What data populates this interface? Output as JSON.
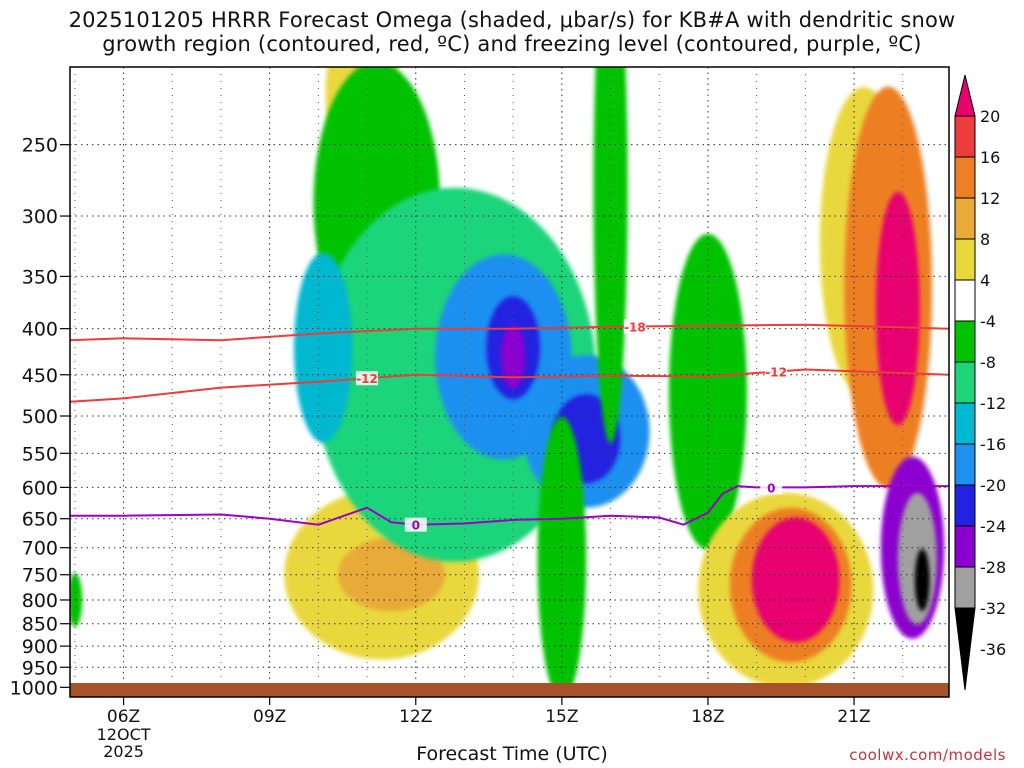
{
  "title": {
    "line1": "2025101205 HRRR Forecast Omega (shaded, μbar/s) for KB#A with dendritic snow",
    "line2": "growth region (contoured, red, ºC) and freezing level (contoured, purple, ºC)"
  },
  "credit": "coolwx.com/models",
  "chart_data": {
    "type": "heatmap",
    "xlabel": "Forecast Time (UTC)",
    "ylabel": "",
    "x_ticks": [
      "06Z",
      "09Z",
      "12Z",
      "15Z",
      "18Z",
      "21Z"
    ],
    "x_tick_hours": [
      6,
      9,
      12,
      15,
      18,
      21
    ],
    "x_sublabel": [
      "12OCT",
      "2025"
    ],
    "xlim_hours": [
      4.9,
      22.95
    ],
    "y_ticks": [
      250,
      300,
      350,
      400,
      450,
      500,
      550,
      600,
      650,
      700,
      750,
      800,
      850,
      900,
      950,
      1000
    ],
    "ylim_hpa": [
      1025,
      205
    ],
    "y_scale": "log",
    "grid": true,
    "colorbar": {
      "labels": [
        "20",
        "16",
        "12",
        "8",
        "4",
        "-4",
        "-8",
        "-12",
        "-16",
        "-20",
        "-24",
        "-28",
        "-32",
        "-36"
      ],
      "colors": [
        "#e8006f",
        "#ee3b3b",
        "#ed7f24",
        "#e8aa38",
        "#e9d83c",
        "#ffffff",
        "#00c200",
        "#1ed47a",
        "#00b8d0",
        "#1e90f0",
        "#2222e0",
        "#8b00d0",
        "#a0a0a0",
        "#000000"
      ]
    },
    "omega_regions": [
      {
        "t": 5.0,
        "p": 800,
        "dt": 0.15,
        "dp": 55,
        "v": -6
      },
      {
        "t": 11.3,
        "p": 750,
        "dt": 2.0,
        "dp": 160,
        "v": 5
      },
      {
        "t": 11.5,
        "p": 750,
        "dt": 1.1,
        "dp": 70,
        "v": 9
      },
      {
        "t": 10.9,
        "p": 220,
        "dt": 0.75,
        "dp": 50,
        "v": 5
      },
      {
        "t": 10.9,
        "p": 225,
        "dt": 0.3,
        "dp": 22,
        "v": 11
      },
      {
        "t": 11.2,
        "p": 290,
        "dt": 1.3,
        "dp": 100,
        "v": -6
      },
      {
        "t": 12.8,
        "p": 450,
        "dt": 2.9,
        "dp": 200,
        "v": -8
      },
      {
        "t": 13.8,
        "p": 430,
        "dt": 1.4,
        "dp": 110,
        "v": -18
      },
      {
        "t": 14.0,
        "p": 420,
        "dt": 0.55,
        "dp": 55,
        "v": -22
      },
      {
        "t": 14.0,
        "p": 430,
        "dt": 0.25,
        "dp": 35,
        "v": -26
      },
      {
        "t": 15.5,
        "p": 520,
        "dt": 1.3,
        "dp": 100,
        "v": -18
      },
      {
        "t": 15.5,
        "p": 530,
        "dt": 0.7,
        "dp": 60,
        "v": -22
      },
      {
        "t": 10.1,
        "p": 420,
        "dt": 0.6,
        "dp": 100,
        "v": -14
      },
      {
        "t": 15.0,
        "p": 720,
        "dt": 0.5,
        "dp": 250,
        "v": -7
      },
      {
        "t": 16.0,
        "p": 280,
        "dt": 0.35,
        "dp": 160,
        "v": -6
      },
      {
        "t": 18.0,
        "p": 470,
        "dt": 0.8,
        "dp": 180,
        "v": -7
      },
      {
        "t": 19.6,
        "p": 780,
        "dt": 1.8,
        "dp": 190,
        "v": 6
      },
      {
        "t": 19.7,
        "p": 770,
        "dt": 1.25,
        "dp": 150,
        "v": 14
      },
      {
        "t": 19.8,
        "p": 760,
        "dt": 0.9,
        "dp": 120,
        "v": 22
      },
      {
        "t": 21.2,
        "p": 320,
        "dt": 0.9,
        "dp": 120,
        "v": 5
      },
      {
        "t": 21.7,
        "p": 360,
        "dt": 0.9,
        "dp": 170,
        "v": 12
      },
      {
        "t": 21.9,
        "p": 380,
        "dt": 0.45,
        "dp": 110,
        "v": 22
      },
      {
        "t": 22.2,
        "p": 700,
        "dt": 0.65,
        "dp": 160,
        "v": -24
      },
      {
        "t": 22.3,
        "p": 720,
        "dt": 0.4,
        "dp": 120,
        "v": -33
      },
      {
        "t": 22.4,
        "p": 760,
        "dt": 0.15,
        "dp": 60,
        "v": -38
      }
    ],
    "series": [
      {
        "name": "-18",
        "color": "#ee3b3b",
        "t": [
          4.9,
          6.0,
          8.0,
          10.0,
          12.0,
          14.0,
          16.0,
          18.0,
          20.0,
          22.95
        ],
        "p": [
          412,
          410,
          412,
          405,
          400,
          400,
          398,
          397,
          396,
          400
        ]
      },
      {
        "name": "-12",
        "color": "#ee3b3b",
        "t": [
          4.9,
          6.0,
          8.0,
          10.0,
          12.0,
          14.0,
          16.0,
          18.0,
          20.0,
          22.95
        ],
        "p": [
          482,
          478,
          465,
          458,
          450,
          453,
          451,
          452,
          444,
          450
        ]
      },
      {
        "name": "0",
        "color": "#9b00c8",
        "t": [
          4.9,
          6.0,
          8.0,
          9.0,
          10.0,
          11.0,
          11.5,
          12.0,
          13.0,
          14.0,
          15.0,
          16.0,
          17.0,
          17.5,
          18.0,
          18.3,
          18.6,
          19.0,
          20.0,
          21.0,
          22.95
        ],
        "p": [
          645,
          645,
          643,
          650,
          660,
          632,
          656,
          660,
          658,
          652,
          650,
          645,
          648,
          660,
          640,
          610,
          598,
          600,
          600,
          598,
          598
        ]
      }
    ]
  }
}
